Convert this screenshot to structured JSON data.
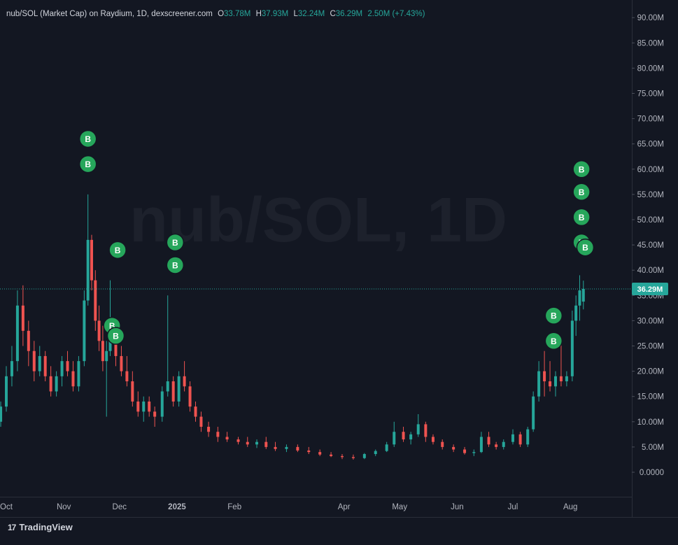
{
  "legend": {
    "symbol": "nub/SOL (Market Cap) on Raydium, 1D, dexscreener.com",
    "o_key": "O",
    "o_val": "33.78M",
    "h_key": "H",
    "h_val": "37.93M",
    "l_key": "L",
    "l_val": "32.24M",
    "c_key": "C",
    "c_val": "36.29M",
    "change": "2.50M (+7.43%)"
  },
  "watermark": "nub/SOL, 1D",
  "brand": {
    "logo": "17",
    "name": "TradingView"
  },
  "colors": {
    "background": "#131722",
    "up": "#26a69a",
    "down": "#ef5350",
    "marker": "#26a65b",
    "price_tag": "#26a69a",
    "grid_separator": "#2a2e39"
  },
  "chart_data": {
    "type": "candlestick",
    "title": "nub/SOL (Market Cap) on Raydium, 1D, dexscreener.com",
    "ylim": [
      -4,
      92
    ],
    "yticks": [
      "90.00M",
      "85.00M",
      "80.00M",
      "75.00M",
      "70.00M",
      "65.00M",
      "60.00M",
      "55.00M",
      "50.00M",
      "45.00M",
      "40.00M",
      "35.00M",
      "30.00M",
      "25.00M",
      "20.00M",
      "15.00M",
      "10.00M",
      "5.00M",
      "0.0000"
    ],
    "ytick_values": [
      90,
      85,
      80,
      75,
      70,
      65,
      60,
      55,
      50,
      45,
      40,
      35,
      30,
      25,
      20,
      15,
      10,
      5,
      0
    ],
    "xticks": [
      "Oct",
      "Nov",
      "Dec",
      "2025",
      "Feb",
      "Apr",
      "May",
      "Jun",
      "Jul",
      "Aug"
    ],
    "xtick_dates": [
      "2024-10-01",
      "2024-11-01",
      "2024-12-01",
      "2025-01-01",
      "2025-02-01",
      "2025-04-01",
      "2025-05-01",
      "2025-06-01",
      "2025-07-01",
      "2025-08-01"
    ],
    "last_price_label": "36.29M",
    "last_price": 36.29,
    "series": [
      {
        "values": [
          [
            "2024-09-28",
            10,
            14,
            9,
            13
          ],
          [
            "2024-10-01",
            13,
            21,
            12,
            19
          ],
          [
            "2024-10-04",
            19,
            25,
            17,
            22
          ],
          [
            "2024-10-07",
            22,
            36,
            20,
            33
          ],
          [
            "2024-10-10",
            33,
            37,
            25,
            28
          ],
          [
            "2024-10-13",
            28,
            30,
            21,
            24
          ],
          [
            "2024-10-16",
            24,
            26,
            18,
            20
          ],
          [
            "2024-10-19",
            20,
            25,
            19,
            23
          ],
          [
            "2024-10-22",
            23,
            24,
            18,
            19
          ],
          [
            "2024-10-25",
            19,
            21,
            15,
            16
          ],
          [
            "2024-10-28",
            16,
            20,
            15,
            19
          ],
          [
            "2024-10-31",
            19,
            23,
            17,
            22
          ],
          [
            "2024-11-03",
            22,
            24,
            19,
            20
          ],
          [
            "2024-11-06",
            20,
            22,
            16,
            17
          ],
          [
            "2024-11-09",
            17,
            23,
            16,
            22
          ],
          [
            "2024-11-12",
            22,
            36,
            21,
            34
          ],
          [
            "2024-11-14",
            34,
            55,
            33,
            46
          ],
          [
            "2024-11-16",
            46,
            47,
            36,
            38
          ],
          [
            "2024-11-18",
            38,
            40,
            28,
            30
          ],
          [
            "2024-11-20",
            30,
            33,
            24,
            26
          ],
          [
            "2024-11-22",
            26,
            29,
            20,
            22
          ],
          [
            "2024-11-24",
            22,
            26,
            11,
            24
          ],
          [
            "2024-11-26",
            24,
            38,
            23,
            26
          ],
          [
            "2024-11-29",
            26,
            28,
            21,
            23
          ],
          [
            "2024-12-02",
            23,
            25,
            19,
            20
          ],
          [
            "2024-12-05",
            20,
            23,
            17,
            18
          ],
          [
            "2024-12-08",
            18,
            20,
            13,
            14
          ],
          [
            "2024-12-11",
            14,
            16,
            11,
            12
          ],
          [
            "2024-12-14",
            12,
            15,
            10,
            14
          ],
          [
            "2024-12-17",
            14,
            15,
            11,
            12
          ],
          [
            "2024-12-20",
            12,
            13,
            9,
            11
          ],
          [
            "2024-12-24",
            11,
            17,
            10,
            16
          ],
          [
            "2024-12-27",
            16,
            35,
            15,
            18
          ],
          [
            "2024-12-30",
            18,
            19,
            13,
            14
          ],
          [
            "2025-01-02",
            14,
            20,
            13,
            19
          ],
          [
            "2025-01-05",
            19,
            22,
            16,
            17
          ],
          [
            "2025-01-08",
            17,
            18,
            12,
            13
          ],
          [
            "2025-01-11",
            13,
            14,
            10,
            11
          ],
          [
            "2025-01-14",
            11,
            12,
            8,
            9
          ],
          [
            "2025-01-18",
            9,
            10,
            7,
            8
          ],
          [
            "2025-01-23",
            8,
            9,
            6,
            7
          ],
          [
            "2025-01-28",
            7,
            8,
            6,
            6.5
          ],
          [
            "2025-02-03",
            6.5,
            7,
            5.5,
            6
          ],
          [
            "2025-02-08",
            6,
            7,
            5,
            5.5
          ],
          [
            "2025-02-13",
            5.5,
            6.5,
            4.8,
            6
          ],
          [
            "2025-02-18",
            6,
            7,
            4.6,
            5
          ],
          [
            "2025-02-23",
            5,
            6,
            4.2,
            4.6
          ],
          [
            "2025-03-01",
            4.6,
            5.5,
            4,
            5
          ],
          [
            "2025-03-07",
            5,
            5.5,
            4,
            4.3
          ],
          [
            "2025-03-13",
            4.3,
            5,
            3.6,
            4
          ],
          [
            "2025-03-19",
            4,
            4.5,
            3.2,
            3.5
          ],
          [
            "2025-03-25",
            3.5,
            4,
            3,
            3.2
          ],
          [
            "2025-03-31",
            3.2,
            3.6,
            2.6,
            3
          ],
          [
            "2025-04-06",
            3,
            3.5,
            2.5,
            2.8
          ],
          [
            "2025-04-12",
            2.8,
            3.8,
            2.6,
            3.6
          ],
          [
            "2025-04-18",
            3.6,
            4.5,
            3.2,
            4.2
          ],
          [
            "2025-04-24",
            4.2,
            6,
            4,
            5.5
          ],
          [
            "2025-04-28",
            5.5,
            10,
            5,
            8
          ],
          [
            "2025-05-03",
            8,
            9,
            6,
            6.5
          ],
          [
            "2025-05-07",
            6.5,
            8,
            5.5,
            7.5
          ],
          [
            "2025-05-11",
            7.5,
            11.5,
            7,
            9.5
          ],
          [
            "2025-05-15",
            9.5,
            10,
            6,
            7
          ],
          [
            "2025-05-19",
            7,
            7.5,
            5.5,
            6
          ],
          [
            "2025-05-24",
            6,
            6.5,
            4.5,
            5
          ],
          [
            "2025-05-30",
            5,
            5.5,
            4,
            4.5
          ],
          [
            "2025-06-05",
            4.5,
            5,
            3.5,
            3.8
          ],
          [
            "2025-06-10",
            3.8,
            4.5,
            3.2,
            4
          ],
          [
            "2025-06-14",
            4,
            8,
            3.8,
            7
          ],
          [
            "2025-06-18",
            7,
            8,
            5,
            5.5
          ],
          [
            "2025-06-22",
            5.5,
            6,
            4.5,
            5
          ],
          [
            "2025-06-26",
            5,
            6.5,
            4.5,
            6
          ],
          [
            "2025-07-01",
            6,
            8.5,
            5.5,
            7.5
          ],
          [
            "2025-07-05",
            7.5,
            8,
            5,
            5.5
          ],
          [
            "2025-07-09",
            5.5,
            9,
            5,
            8.5
          ],
          [
            "2025-07-12",
            8.5,
            16,
            8,
            15
          ],
          [
            "2025-07-15",
            15,
            22,
            14,
            20
          ],
          [
            "2025-07-18",
            20,
            24,
            15,
            18
          ],
          [
            "2025-07-21",
            18,
            22,
            16,
            17
          ],
          [
            "2025-07-24",
            17,
            20,
            15,
            19
          ],
          [
            "2025-07-27",
            19,
            26,
            17,
            18
          ],
          [
            "2025-07-30",
            18,
            20,
            17,
            19
          ],
          [
            "2025-08-02",
            19,
            32,
            18,
            30
          ],
          [
            "2025-08-04",
            30,
            35,
            27,
            33
          ],
          [
            "2025-08-06",
            33,
            39,
            30,
            36
          ],
          [
            "2025-08-08",
            33.78,
            37.93,
            32.24,
            36.29
          ]
        ]
      }
    ],
    "annotations": [
      {
        "date": "2024-11-14",
        "value": 66,
        "text": "B"
      },
      {
        "date": "2024-11-14",
        "value": 61,
        "text": "B"
      },
      {
        "date": "2024-11-30",
        "value": 44,
        "text": "B"
      },
      {
        "date": "2024-11-27",
        "value": 29,
        "text": "B"
      },
      {
        "date": "2024-11-29",
        "value": 27,
        "text": "B"
      },
      {
        "date": "2024-12-31",
        "value": 45.5,
        "text": "B"
      },
      {
        "date": "2024-12-31",
        "value": 41,
        "text": "B"
      },
      {
        "date": "2025-07-23",
        "value": 31,
        "text": "B"
      },
      {
        "date": "2025-07-23",
        "value": 26,
        "text": "B"
      },
      {
        "date": "2025-08-07",
        "value": 60,
        "text": "B"
      },
      {
        "date": "2025-08-07",
        "value": 55.5,
        "text": "B"
      },
      {
        "date": "2025-08-07",
        "value": 50.5,
        "text": "B"
      },
      {
        "date": "2025-08-07",
        "value": 45.5,
        "text": "B"
      },
      {
        "date": "2025-08-09",
        "value": 44.5,
        "text": "B"
      }
    ]
  }
}
